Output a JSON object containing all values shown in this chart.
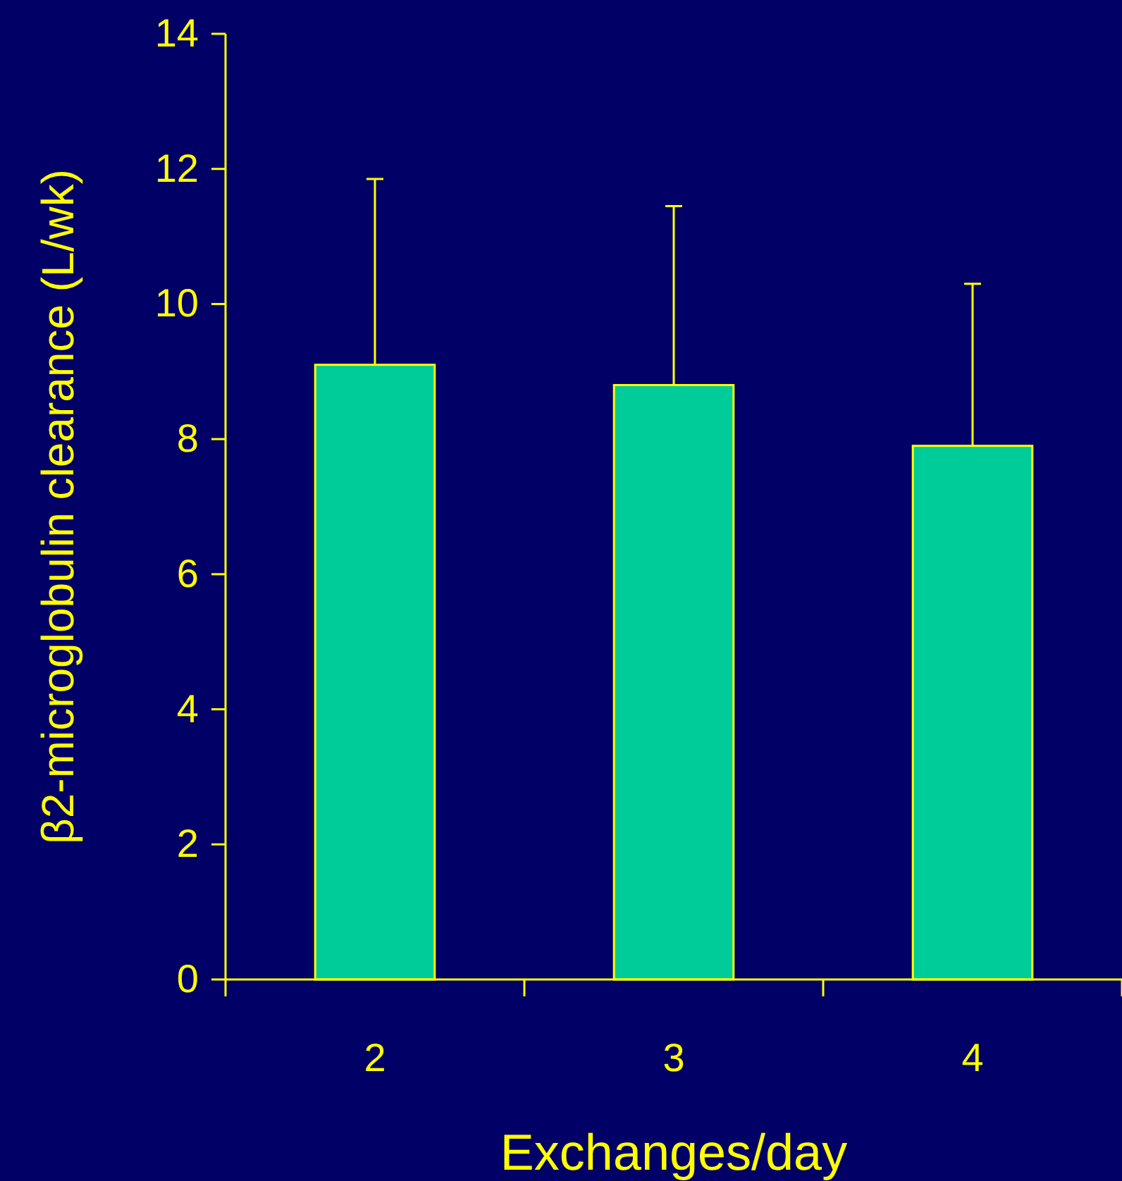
{
  "chart_data": {
    "type": "bar",
    "xlabel": "Exchanges/day",
    "ylabel": "β2-microglobulin clearance (L/wk)",
    "categories": [
      "2",
      "3",
      "4"
    ],
    "values": [
      9.1,
      8.8,
      7.9
    ],
    "errors": [
      2.75,
      2.65,
      2.4
    ],
    "color": "#00cc99",
    "ylim": [
      0,
      14
    ],
    "yticks": [
      0,
      2,
      4,
      6,
      8,
      10,
      12,
      14
    ],
    "grid": false
  }
}
